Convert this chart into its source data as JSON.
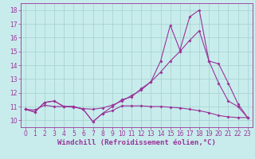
{
  "title": "",
  "xlabel": "Windchill (Refroidissement éolien,°C)",
  "ylabel": "",
  "background_color": "#c8ecec",
  "grid_color": "#aad4d4",
  "line_color": "#993399",
  "xlim": [
    -0.5,
    23.5
  ],
  "ylim": [
    9.5,
    18.5
  ],
  "xticks": [
    0,
    1,
    2,
    3,
    4,
    5,
    6,
    7,
    8,
    9,
    10,
    11,
    12,
    13,
    14,
    15,
    16,
    17,
    18,
    19,
    20,
    21,
    22,
    23
  ],
  "yticks": [
    10,
    11,
    12,
    13,
    14,
    15,
    16,
    17,
    18
  ],
  "line1_x": [
    0,
    1,
    2,
    3,
    4,
    5,
    6,
    7,
    8,
    9,
    10,
    11,
    12,
    13,
    14,
    15,
    16,
    17,
    18,
    19,
    20,
    21,
    22,
    23
  ],
  "line1_y": [
    10.8,
    10.6,
    11.3,
    11.4,
    11.0,
    11.0,
    10.8,
    9.9,
    10.5,
    10.7,
    11.05,
    11.05,
    11.05,
    11.0,
    11.0,
    10.95,
    10.9,
    10.8,
    10.7,
    10.55,
    10.35,
    10.25,
    10.2,
    10.2
  ],
  "line2_x": [
    0,
    1,
    2,
    3,
    4,
    5,
    6,
    7,
    8,
    9,
    10,
    11,
    12,
    13,
    14,
    15,
    16,
    17,
    18,
    19,
    20,
    21,
    22,
    23
  ],
  "line2_y": [
    10.8,
    10.6,
    11.3,
    11.4,
    11.0,
    11.0,
    10.8,
    9.9,
    10.5,
    11.0,
    11.5,
    11.7,
    12.3,
    12.8,
    14.3,
    16.9,
    15.1,
    17.5,
    18.0,
    14.3,
    12.7,
    11.4,
    11.0,
    10.2
  ],
  "line3_x": [
    0,
    1,
    2,
    3,
    4,
    5,
    6,
    7,
    8,
    9,
    10,
    11,
    12,
    13,
    14,
    15,
    16,
    17,
    18,
    19,
    20,
    21,
    22,
    23
  ],
  "line3_y": [
    10.8,
    10.75,
    11.1,
    11.0,
    11.0,
    10.95,
    10.85,
    10.8,
    10.9,
    11.1,
    11.4,
    11.8,
    12.2,
    12.8,
    13.5,
    14.3,
    15.0,
    15.8,
    16.5,
    14.3,
    14.1,
    12.7,
    11.2,
    10.2
  ],
  "font_color": "#993399",
  "tick_fontsize": 5.5,
  "xlabel_fontsize": 6.5,
  "marker": "D",
  "markersize": 2.0,
  "linewidth": 0.8
}
